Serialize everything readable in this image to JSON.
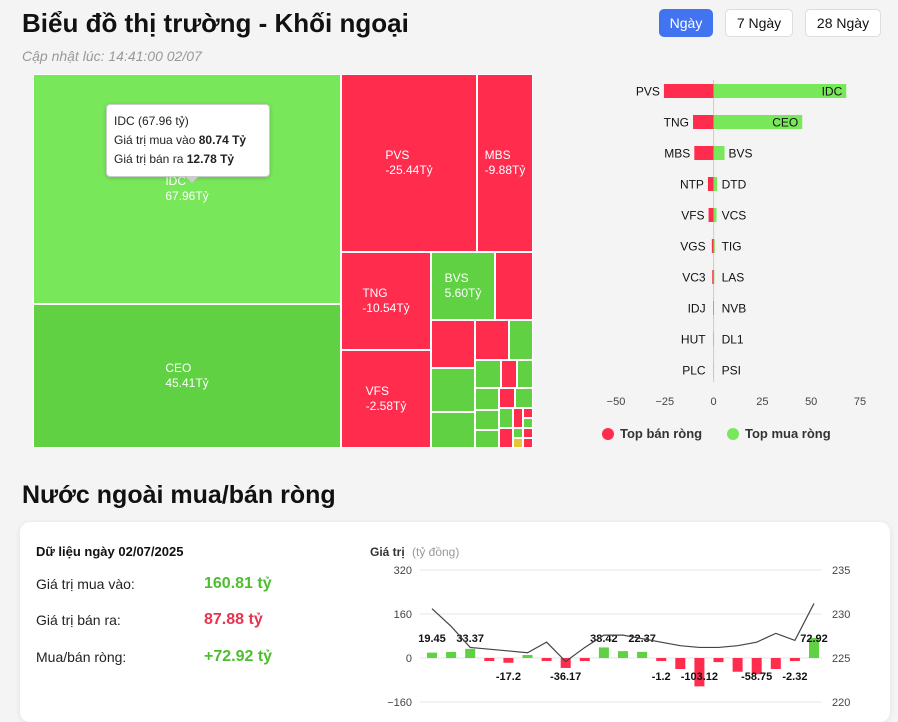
{
  "header": {
    "title": "Biểu đồ thị trường - Khối ngoại",
    "updated": "Cập nhật lúc: 14:41:00 02/07",
    "tabs": [
      {
        "label": "Ngày",
        "active": true
      },
      {
        "label": "7 Ngày",
        "active": false
      },
      {
        "label": "28 Ngày",
        "active": false
      }
    ]
  },
  "colors": {
    "buy": "#78e85a",
    "buy_dark": "#5fd143",
    "sell": "#ff2c4e",
    "accent": "#4273f1"
  },
  "treemap": {
    "labeled_tiles": [
      {
        "ticker": "IDC",
        "value": "67.96Tỷ"
      },
      {
        "ticker": "CEO",
        "value": "45.41Tỷ"
      },
      {
        "ticker": "PVS",
        "value": "-25.44Tỷ"
      },
      {
        "ticker": "MBS",
        "value": "-9.88Tỷ"
      },
      {
        "ticker": "TNG",
        "value": "-10.54Tỷ"
      },
      {
        "ticker": "BVS",
        "value": "5.60Tỷ"
      },
      {
        "ticker": "VFS",
        "value": "-2.58Tỷ"
      }
    ],
    "tooltip": {
      "title": "IDC (67.96 tỷ)",
      "buy_label": "Giá trị mua vào",
      "buy_value": "80.74 Tỷ",
      "sell_label": "Giá trị bán ra",
      "sell_value": "12.78 Tỷ"
    }
  },
  "chart_data": [
    {
      "type": "bar",
      "orientation": "horizontal",
      "sell_tickers": [
        "PVS",
        "TNG",
        "MBS",
        "NTP",
        "VFS",
        "VGS",
        "VC3",
        "IDJ",
        "HUT",
        "PLC"
      ],
      "sell_values": [
        -25.44,
        -10.54,
        -9.88,
        -2.9,
        -2.58,
        -0.9,
        -0.7,
        -0.2,
        -0.1,
        -0.05
      ],
      "buy_tickers": [
        "IDC",
        "CEO",
        "BVS",
        "DTD",
        "VCS",
        "TIG",
        "LAS",
        "NVB",
        "DL1",
        "PSI"
      ],
      "buy_values": [
        67.96,
        45.41,
        5.6,
        1.8,
        1.5,
        0.6,
        0.4,
        0.2,
        0.1,
        0.05
      ],
      "xticks": [
        -50,
        -25,
        0,
        25,
        50,
        75
      ],
      "xlim": [
        -50,
        75
      ],
      "legend": [
        "Top bán ròng",
        "Top mua ròng"
      ],
      "legend_position": "bottom"
    },
    {
      "type": "bar+line",
      "y_title": "Giá trị",
      "y_unit": "(tỷ đồng)",
      "left_ylim": [
        -160,
        320
      ],
      "left_yticks": [
        320,
        160,
        0,
        -160
      ],
      "right_ylim": [
        220,
        235
      ],
      "right_yticks": [
        235,
        230,
        225,
        220
      ],
      "bars": [
        19.45,
        22,
        33.37,
        -2,
        -17.2,
        2,
        -8,
        -36.17,
        -3,
        38.42,
        25,
        22.37,
        -1.2,
        -40,
        -103.12,
        -15,
        -50,
        -58.75,
        -40,
        -2.32,
        72.92
      ],
      "bar_labels": [
        {
          "index": 0,
          "text": "19.45"
        },
        {
          "index": 2,
          "text": "33.37"
        },
        {
          "index": 4,
          "text": "-17.2"
        },
        {
          "index": 7,
          "text": "-36.17"
        },
        {
          "index": 9,
          "text": "38.42"
        },
        {
          "index": 11,
          "text": "22.37"
        },
        {
          "index": 12,
          "text": "-1.2"
        },
        {
          "index": 14,
          "text": "-103.12"
        },
        {
          "index": 17,
          "text": "-58.75"
        },
        {
          "index": 19,
          "text": "-2.32"
        },
        {
          "index": 20,
          "text": "72.92"
        }
      ],
      "line": [
        230.6,
        228.6,
        226.2,
        226.0,
        225.8,
        225.6,
        226.8,
        224.6,
        226.2,
        227.6,
        227.6,
        227.2,
        226.8,
        226.4,
        226.2,
        226.2,
        226.4,
        226.8,
        227.8,
        227.0,
        231.2
      ]
    }
  ],
  "section2": {
    "title": "Nước ngoài mua/bán ròng",
    "date_label": "Dữ liệu ngày 02/07/2025",
    "stats": [
      {
        "label": "Giá trị mua vào:",
        "value": "160.81 tỷ",
        "color": "green"
      },
      {
        "label": "Giá trị bán ra:",
        "value": "87.88 tỷ",
        "color": "red"
      },
      {
        "label": "Mua/bán ròng:",
        "value": "+72.92 tỷ",
        "color": "green"
      }
    ]
  }
}
